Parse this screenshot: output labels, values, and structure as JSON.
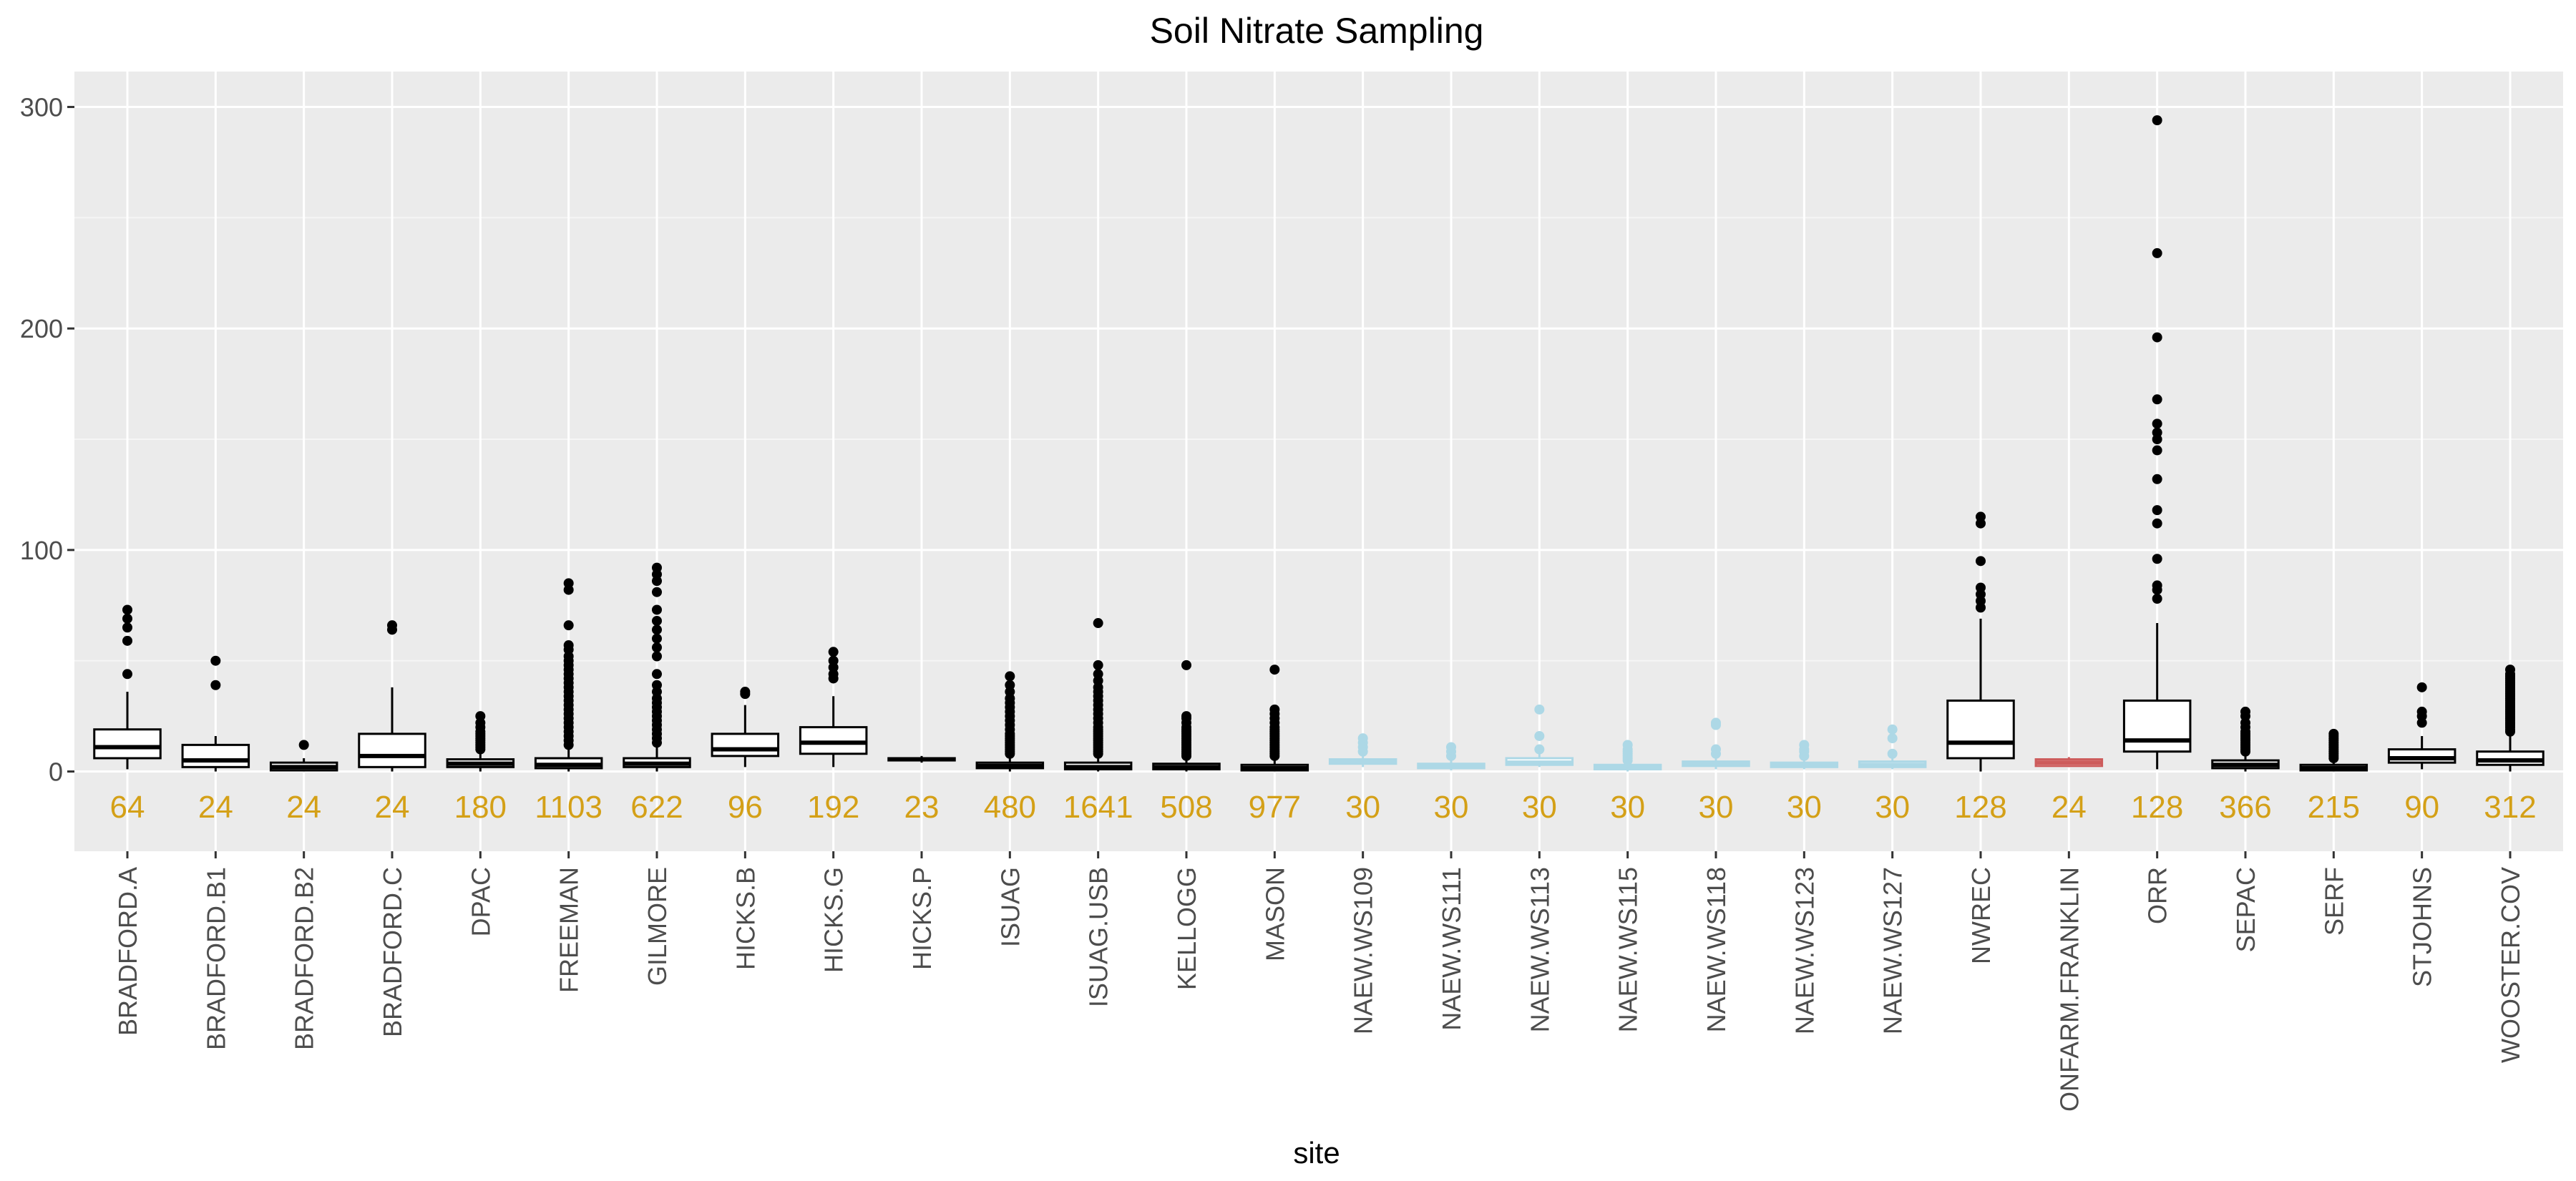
{
  "chart_data": {
    "type": "boxplot",
    "title": "Soil Nitrate Sampling",
    "xlabel": "site",
    "ylabel": "",
    "ylim": [
      -36,
      316
    ],
    "yticks": [
      0,
      100,
      200,
      300
    ],
    "grid": true,
    "legend": "none",
    "colors": {
      "panel": "#ebebeb",
      "grid_major": "#ffffff",
      "box_default": "#000000",
      "box_naew": "#add8e6",
      "box_onfarm": "#cd5c5c",
      "count_label": "#d4a017",
      "tick_text": "#4d4d4d"
    },
    "series": [
      {
        "site": "BRADFORD.A",
        "n": "64",
        "min": 1,
        "q1": 6,
        "median": 11,
        "q3": 19,
        "max": 36,
        "outliers": [
          44,
          59,
          65,
          69,
          73
        ],
        "color": "#000000"
      },
      {
        "site": "BRADFORD.B1",
        "n": "24",
        "min": 0,
        "q1": 2,
        "median": 5,
        "q3": 12,
        "max": 16,
        "outliers": [
          39,
          50
        ],
        "color": "#000000"
      },
      {
        "site": "BRADFORD.B2",
        "n": "24",
        "min": 0,
        "q1": 0.5,
        "median": 2,
        "q3": 4,
        "max": 6,
        "outliers": [
          12
        ],
        "color": "#000000"
      },
      {
        "site": "BRADFORD.C",
        "n": "24",
        "min": 0,
        "q1": 2,
        "median": 7,
        "q3": 17,
        "max": 38,
        "outliers": [
          64,
          66
        ],
        "color": "#000000"
      },
      {
        "site": "DPAC",
        "n": "180",
        "min": 0,
        "q1": 2,
        "median": 3.5,
        "q3": 5.5,
        "max": 9,
        "outliers": [
          10,
          11,
          12,
          13,
          14,
          15,
          16,
          17,
          18,
          20,
          22,
          25
        ],
        "color": "#000000"
      },
      {
        "site": "FREEMAN",
        "n": "1103",
        "min": 0,
        "q1": 1.5,
        "median": 3,
        "q3": 6,
        "max": 11,
        "outliers": [
          12,
          14,
          16,
          18,
          20,
          22,
          24,
          26,
          28,
          30,
          32,
          34,
          36,
          38,
          40,
          42,
          44,
          46,
          48,
          50,
          52,
          55,
          57,
          66,
          82,
          85
        ],
        "color": "#000000"
      },
      {
        "site": "GILMORE",
        "n": "622",
        "min": 0,
        "q1": 2,
        "median": 3.5,
        "q3": 6,
        "max": 12,
        "outliers": [
          13,
          15,
          17,
          19,
          21,
          23,
          25,
          27,
          29,
          31,
          33,
          36,
          39,
          44,
          52,
          56,
          60,
          64,
          68,
          73,
          81,
          86,
          89,
          92
        ],
        "color": "#000000"
      },
      {
        "site": "HICKS.B",
        "n": "96",
        "min": 2,
        "q1": 7,
        "median": 10,
        "q3": 17,
        "max": 30,
        "outliers": [
          35,
          36
        ],
        "color": "#000000"
      },
      {
        "site": "HICKS.G",
        "n": "192",
        "min": 2,
        "q1": 8,
        "median": 13,
        "q3": 20,
        "max": 34,
        "outliers": [
          42,
          44,
          47,
          50,
          54
        ],
        "color": "#000000"
      },
      {
        "site": "HICKS.P",
        "n": "23",
        "min": 4,
        "q1": 5,
        "median": 5.5,
        "q3": 6,
        "max": 7,
        "outliers": [],
        "color": "#000000"
      },
      {
        "site": "ISUAG",
        "n": "480",
        "min": 0,
        "q1": 1.5,
        "median": 2.5,
        "q3": 4,
        "max": 7,
        "outliers": [
          8,
          9,
          10,
          11,
          12,
          13,
          14,
          15,
          16,
          17,
          19,
          21,
          23,
          25,
          27,
          29,
          31,
          33,
          36,
          39,
          43
        ],
        "color": "#000000"
      },
      {
        "site": "ISUAG.USB",
        "n": "1641",
        "min": 0,
        "q1": 1,
        "median": 2,
        "q3": 4,
        "max": 7,
        "outliers": [
          8,
          9,
          10,
          11,
          12,
          13,
          14,
          15,
          16,
          17,
          18,
          19,
          20,
          22,
          24,
          26,
          28,
          30,
          32,
          34,
          36,
          38,
          41,
          44,
          48,
          67
        ],
        "color": "#000000"
      },
      {
        "site": "KELLOGG",
        "n": "508",
        "min": 0,
        "q1": 1,
        "median": 2,
        "q3": 3.5,
        "max": 6,
        "outliers": [
          7,
          8,
          9,
          10,
          11,
          12,
          13,
          14,
          15,
          16,
          17,
          18,
          19,
          20,
          22,
          24,
          25,
          48
        ],
        "color": "#000000"
      },
      {
        "site": "MASON",
        "n": "977",
        "min": 0,
        "q1": 0.5,
        "median": 1.5,
        "q3": 3,
        "max": 6,
        "outliers": [
          7,
          8,
          9,
          10,
          11,
          12,
          13,
          14,
          15,
          16,
          17,
          18,
          19,
          20,
          22,
          24,
          26,
          28,
          46
        ],
        "color": "#000000"
      },
      {
        "site": "NAEW.WS109",
        "n": "30",
        "min": 2,
        "q1": 3.5,
        "median": 4.5,
        "q3": 5.5,
        "max": 7,
        "outliers": [
          9,
          11,
          13,
          15
        ],
        "color": "#add8e6"
      },
      {
        "site": "NAEW.WS111",
        "n": "30",
        "min": 0.5,
        "q1": 1.5,
        "median": 2.5,
        "q3": 3.5,
        "max": 5,
        "outliers": [
          7,
          9,
          11
        ],
        "color": "#add8e6"
      },
      {
        "site": "NAEW.WS113",
        "n": "30",
        "min": 2,
        "q1": 3,
        "median": 4,
        "q3": 6,
        "max": 8,
        "outliers": [
          10,
          16,
          28
        ],
        "color": "#add8e6"
      },
      {
        "site": "NAEW.WS115",
        "n": "30",
        "min": 0,
        "q1": 1,
        "median": 2,
        "q3": 3,
        "max": 4,
        "outliers": [
          5,
          6,
          7,
          8,
          9,
          10,
          12
        ],
        "color": "#add8e6"
      },
      {
        "site": "NAEW.WS118",
        "n": "30",
        "min": 1,
        "q1": 2.5,
        "median": 3.5,
        "q3": 4.5,
        "max": 6,
        "outliers": [
          8,
          10,
          21,
          22
        ],
        "color": "#add8e6"
      },
      {
        "site": "NAEW.WS123",
        "n": "30",
        "min": 1,
        "q1": 2,
        "median": 3,
        "q3": 4,
        "max": 5,
        "outliers": [
          7,
          9,
          10,
          12
        ],
        "color": "#add8e6"
      },
      {
        "site": "NAEW.WS127",
        "n": "30",
        "min": 1,
        "q1": 2,
        "median": 3,
        "q3": 4.5,
        "max": 6,
        "outliers": [
          8,
          15,
          19
        ],
        "color": "#add8e6"
      },
      {
        "site": "NWREC",
        "n": "128",
        "min": 0,
        "q1": 6,
        "median": 13,
        "q3": 32,
        "max": 69,
        "outliers": [
          74,
          77,
          80,
          83,
          95,
          112,
          115
        ],
        "color": "#000000"
      },
      {
        "site": "ONFARM.FRANKLIN",
        "n": "24",
        "min": 2,
        "q1": 2.5,
        "median": 4,
        "q3": 5.5,
        "max": 6.5,
        "outliers": [],
        "color": "#cd5c5c"
      },
      {
        "site": "ORR",
        "n": "128",
        "min": 1,
        "q1": 9,
        "median": 14,
        "q3": 32,
        "max": 67,
        "outliers": [
          78,
          82,
          84,
          96,
          112,
          118,
          132,
          145,
          150,
          153,
          157,
          168,
          196,
          234,
          294
        ],
        "color": "#000000"
      },
      {
        "site": "SEPAC",
        "n": "366",
        "min": 0,
        "q1": 1.5,
        "median": 3,
        "q3": 5,
        "max": 8,
        "outliers": [
          9,
          10,
          11,
          12,
          13,
          14,
          15,
          16,
          17,
          18,
          20,
          22,
          25,
          27
        ],
        "color": "#000000"
      },
      {
        "site": "SERF",
        "n": "215",
        "min": 0,
        "q1": 0.5,
        "median": 1.5,
        "q3": 3,
        "max": 5,
        "outliers": [
          6,
          7,
          8,
          9,
          10,
          11,
          12,
          13,
          14,
          15,
          16,
          17
        ],
        "color": "#000000"
      },
      {
        "site": "STJOHNS",
        "n": "90",
        "min": 1,
        "q1": 4,
        "median": 6,
        "q3": 10,
        "max": 16,
        "outliers": [
          22,
          25,
          27,
          38
        ],
        "color": "#000000"
      },
      {
        "site": "WOOSTER.COV",
        "n": "312",
        "min": 0,
        "q1": 3,
        "median": 5,
        "q3": 9,
        "max": 17,
        "outliers": [
          18,
          19,
          20,
          21,
          22,
          23,
          24,
          25,
          26,
          27,
          28,
          29,
          30,
          31,
          32,
          33,
          34,
          35,
          36,
          37,
          38,
          39,
          40,
          41,
          42,
          43,
          44,
          46
        ],
        "color": "#000000"
      }
    ]
  }
}
